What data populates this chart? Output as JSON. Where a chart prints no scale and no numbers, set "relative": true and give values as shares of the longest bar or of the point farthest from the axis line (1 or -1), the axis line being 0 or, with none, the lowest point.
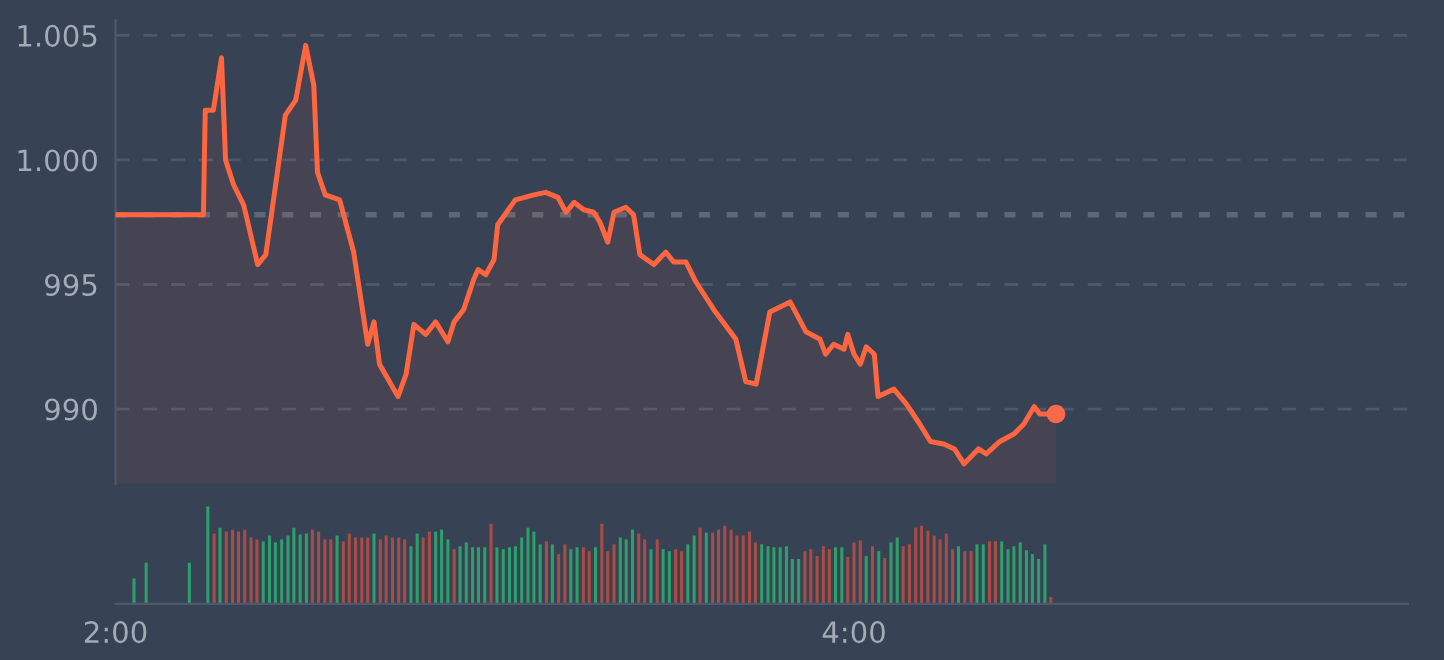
{
  "chart_data": [
    {
      "type": "area",
      "xlim": [
        2,
        5.5
      ],
      "ylim": [
        987,
        1005.6
      ],
      "yticks": [
        {
          "value": 1005,
          "label": "1.005"
        },
        {
          "value": 1000,
          "label": "1.000"
        },
        995,
        990
      ],
      "tick_labels": "y",
      "grid": "y",
      "ref_lines": [
        {
          "axis": "y",
          "value": 997.8,
          "color": "#5d6776",
          "line_style": "dotted"
        }
      ],
      "series": [
        {
          "type": "area",
          "color": "#ff6640",
          "x": [
            2.0,
            2.238,
            2.243,
            2.265,
            2.287,
            2.298,
            2.32,
            2.347,
            2.385,
            2.407,
            2.46,
            2.488,
            2.515,
            2.537,
            2.547,
            2.568,
            2.607,
            2.645,
            2.683,
            2.7,
            2.715,
            2.765,
            2.787,
            2.808,
            2.84,
            2.867,
            2.9,
            2.917,
            2.943,
            2.97,
            2.982,
            3.003,
            3.025,
            3.035,
            3.083,
            3.133,
            3.165,
            3.198,
            3.22,
            3.242,
            3.268,
            3.295,
            3.312,
            3.333,
            3.35,
            3.382,
            3.403,
            3.42,
            3.458,
            3.49,
            3.512,
            3.545,
            3.572,
            3.62,
            3.68,
            3.707,
            3.735,
            3.772,
            3.827,
            3.87,
            3.908,
            3.923,
            3.945,
            3.973,
            3.983,
            4.0,
            4.017,
            4.033,
            4.055,
            4.065,
            4.108,
            4.142,
            4.178,
            4.207,
            4.243,
            4.272,
            4.298,
            4.337,
            4.358,
            4.395,
            4.433,
            4.46,
            4.488,
            4.503,
            4.547
          ],
          "values": [
            997.8,
            997.8,
            1002.0,
            1002.0,
            1004.1,
            1000.0,
            999.0,
            998.2,
            995.8,
            996.2,
            1001.8,
            1002.4,
            1004.6,
            1003.0,
            999.5,
            998.6,
            998.4,
            996.3,
            992.6,
            993.5,
            991.8,
            990.5,
            991.4,
            993.4,
            993.0,
            993.5,
            992.7,
            993.5,
            994.0,
            995.2,
            995.6,
            995.4,
            996.0,
            997.4,
            998.4,
            998.6,
            998.7,
            998.5,
            997.9,
            998.3,
            998.0,
            997.9,
            997.5,
            996.7,
            997.9,
            998.1,
            997.8,
            996.2,
            995.8,
            996.3,
            995.9,
            995.9,
            995.1,
            994.0,
            992.8,
            991.1,
            991.0,
            993.9,
            994.3,
            993.1,
            992.8,
            992.2,
            992.6,
            992.4,
            993.0,
            992.2,
            991.8,
            992.5,
            992.2,
            990.5,
            990.8,
            990.2,
            989.4,
            988.7,
            988.6,
            988.4,
            987.8,
            988.4,
            988.2,
            988.7,
            989.0,
            989.4,
            990.1,
            989.8,
            989.8
          ]
        },
        {
          "type": "scatter",
          "color": "#fa6a4a",
          "marker": "circle",
          "x": [
            4.547
          ],
          "values": [
            989.8
          ]
        }
      ]
    },
    {
      "type": "bar",
      "relative": true,
      "xlim": [
        2,
        5.5
      ],
      "xticks": [
        {
          "value": 2,
          "label": "2:00"
        },
        {
          "value": 4,
          "label": "4:00"
        }
      ],
      "tick_labels": "x",
      "x": [
        2.05,
        2.083,
        2.2,
        2.25,
        2.267,
        2.283,
        2.3,
        2.317,
        2.333,
        2.35,
        2.367,
        2.383,
        2.4,
        2.417,
        2.433,
        2.45,
        2.467,
        2.483,
        2.5,
        2.517,
        2.533,
        2.55,
        2.567,
        2.583,
        2.6,
        2.617,
        2.633,
        2.65,
        2.667,
        2.683,
        2.7,
        2.717,
        2.733,
        2.75,
        2.767,
        2.783,
        2.8,
        2.817,
        2.833,
        2.85,
        2.867,
        2.883,
        2.9,
        2.917,
        2.933,
        2.95,
        2.967,
        2.983,
        3.0,
        3.017,
        3.033,
        3.05,
        3.067,
        3.083,
        3.1,
        3.117,
        3.133,
        3.15,
        3.167,
        3.183,
        3.2,
        3.217,
        3.233,
        3.25,
        3.267,
        3.283,
        3.3,
        3.317,
        3.333,
        3.35,
        3.367,
        3.383,
        3.4,
        3.417,
        3.433,
        3.45,
        3.467,
        3.483,
        3.5,
        3.517,
        3.533,
        3.55,
        3.567,
        3.583,
        3.6,
        3.617,
        3.633,
        3.65,
        3.667,
        3.683,
        3.7,
        3.717,
        3.733,
        3.75,
        3.767,
        3.783,
        3.8,
        3.817,
        3.833,
        3.85,
        3.867,
        3.883,
        3.9,
        3.917,
        3.933,
        3.95,
        3.967,
        3.983,
        4.0,
        4.017,
        4.033,
        4.05,
        4.067,
        4.083,
        4.1,
        4.117,
        4.133,
        4.15,
        4.167,
        4.183,
        4.2,
        4.217,
        4.233,
        4.25,
        4.267,
        4.283,
        4.3,
        4.317,
        4.333,
        4.35,
        4.367,
        4.383,
        4.4,
        4.417,
        4.433,
        4.45,
        4.467,
        4.483,
        4.5,
        4.517,
        4.533
      ],
      "values": [
        0.26,
        0.42,
        0.42,
        1.0,
        0.72,
        0.78,
        0.74,
        0.76,
        0.74,
        0.76,
        0.68,
        0.66,
        0.64,
        0.7,
        0.63,
        0.66,
        0.7,
        0.78,
        0.71,
        0.72,
        0.76,
        0.74,
        0.66,
        0.66,
        0.7,
        0.64,
        0.72,
        0.68,
        0.68,
        0.68,
        0.72,
        0.66,
        0.7,
        0.68,
        0.68,
        0.66,
        0.59,
        0.72,
        0.68,
        0.74,
        0.74,
        0.76,
        0.66,
        0.56,
        0.59,
        0.63,
        0.58,
        0.58,
        0.58,
        0.82,
        0.58,
        0.56,
        0.58,
        0.59,
        0.68,
        0.78,
        0.74,
        0.61,
        0.64,
        0.61,
        0.51,
        0.61,
        0.56,
        0.58,
        0.58,
        0.54,
        0.58,
        0.82,
        0.54,
        0.61,
        0.68,
        0.66,
        0.76,
        0.72,
        0.66,
        0.56,
        0.66,
        0.56,
        0.54,
        0.56,
        0.54,
        0.61,
        0.7,
        0.78,
        0.73,
        0.73,
        0.76,
        0.8,
        0.76,
        0.7,
        0.7,
        0.74,
        0.63,
        0.61,
        0.59,
        0.58,
        0.58,
        0.59,
        0.46,
        0.46,
        0.54,
        0.56,
        0.49,
        0.59,
        0.56,
        0.58,
        0.58,
        0.48,
        0.63,
        0.65,
        0.49,
        0.59,
        0.54,
        0.47,
        0.63,
        0.68,
        0.59,
        0.61,
        0.78,
        0.8,
        0.75,
        0.7,
        0.66,
        0.72,
        0.56,
        0.59,
        0.54,
        0.54,
        0.61,
        0.61,
        0.64,
        0.64,
        0.64,
        0.56,
        0.59,
        0.63,
        0.55,
        0.51,
        0.46,
        0.61,
        0.07
      ],
      "colors": [
        "#2e9e6b",
        "#2e9e6b",
        "#2e9e6b",
        "#2e9e6b",
        "#a84c45",
        "#2e9e6b",
        "#a84c45",
        "#a84c45",
        "#a84c45",
        "#a84c45",
        "#a84c45",
        "#a84c45",
        "#2e9e6b",
        "#2e9e6b",
        "#2e9e6b",
        "#2e9e6b",
        "#2e9e6b",
        "#2e9e6b",
        "#2e9e6b",
        "#2e9e6b",
        "#a84c45",
        "#a84c45",
        "#a84c45",
        "#a84c45",
        "#2e9e6b",
        "#a84c45",
        "#a84c45",
        "#a84c45",
        "#a84c45",
        "#a84c45",
        "#2e9e6b",
        "#a84c45",
        "#a84c45",
        "#a84c45",
        "#a84c45",
        "#a84c45",
        "#2e9e6b",
        "#2e9e6b",
        "#a84c45",
        "#a84c45",
        "#2e9e6b",
        "#2e9e6b",
        "#2e9e6b",
        "#a84c45",
        "#2e9e6b",
        "#2e9e6b",
        "#2e9e6b",
        "#2e9e6b",
        "#2e9e6b",
        "#a84c45",
        "#2e9e6b",
        "#2e9e6b",
        "#2e9e6b",
        "#2e9e6b",
        "#2e9e6b",
        "#2e9e6b",
        "#2e9e6b",
        "#2e9e6b",
        "#a84c45",
        "#2e9e6b",
        "#a84c45",
        "#a84c45",
        "#2e9e6b",
        "#2e9e6b",
        "#a84c45",
        "#a84c45",
        "#2e9e6b",
        "#a84c45",
        "#a84c45",
        "#a84c45",
        "#2e9e6b",
        "#2e9e6b",
        "#2e9e6b",
        "#a84c45",
        "#a84c45",
        "#2e9e6b",
        "#a84c45",
        "#2e9e6b",
        "#2e9e6b",
        "#a84c45",
        "#a84c45",
        "#2e9e6b",
        "#2e9e6b",
        "#a84c45",
        "#2e9e6b",
        "#a84c45",
        "#a84c45",
        "#a84c45",
        "#a84c45",
        "#a84c45",
        "#a84c45",
        "#a84c45",
        "#a84c45",
        "#2e9e6b",
        "#2e9e6b",
        "#2e9e6b",
        "#2e9e6b",
        "#2e9e6b",
        "#2e9e6b",
        "#2e9e6b",
        "#a84c45",
        "#a84c45",
        "#a84c45",
        "#a84c45",
        "#a84c45",
        "#2e9e6b",
        "#2e9e6b",
        "#a84c45",
        "#a84c45",
        "#a84c45",
        "#2e9e6b",
        "#a84c45",
        "#2e9e6b",
        "#a84c45",
        "#2e9e6b",
        "#2e9e6b",
        "#a84c45",
        "#a84c45",
        "#a84c45",
        "#a84c45",
        "#a84c45",
        "#a84c45",
        "#a84c45",
        "#a84c45",
        "#a84c45",
        "#2e9e6b",
        "#a84c45",
        "#a84c45",
        "#2e9e6b",
        "#2e9e6b",
        "#a84c45",
        "#a84c45",
        "#2e9e6b",
        "#2e9e6b",
        "#2e9e6b",
        "#2e9e6b",
        "#2e9e6b",
        "#2e9e6b",
        "#2e9e6b",
        "#2e9e6b",
        "#a84c45"
      ]
    }
  ]
}
